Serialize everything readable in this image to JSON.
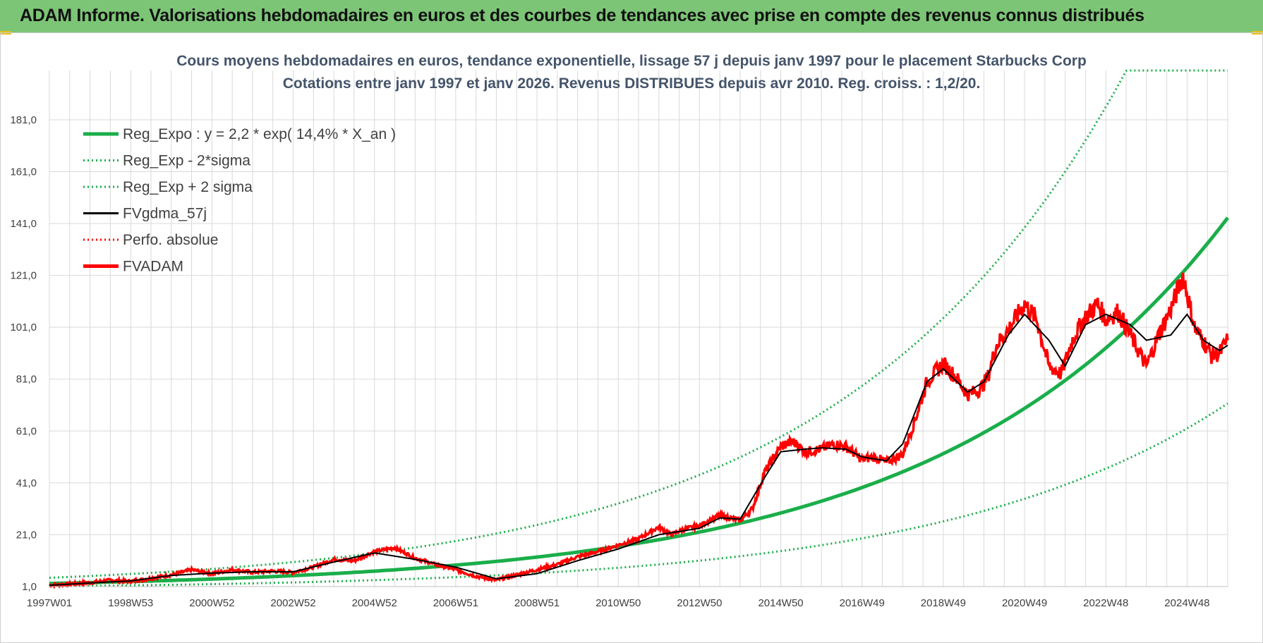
{
  "header": {
    "title": "ADAM Informe. Valorisations hebdomadaires en euros et des courbes de tendances avec prise en compte des revenus connus distribués"
  },
  "chart_data": {
    "type": "line",
    "title": "Cours moyens hebdomadaires en euros, tendance exponentielle, lissage 57 j depuis janv 1997 pour le placement Starbucks Corp",
    "subtitle": "Cotations entre janv 1997 et janv 2026. Revenus DISTRIBUES depuis avr 2010. Reg. croiss. : 1,2/20.",
    "xlabel": "",
    "ylabel": "",
    "xlim": [
      0,
      29
    ],
    "ylim": [
      1,
      200
    ],
    "y_ticks": [
      "1,0",
      "21,0",
      "41,0",
      "61,0",
      "81,0",
      "101,0",
      "121,0",
      "141,0",
      "161,0",
      "181,0"
    ],
    "y_tick_values": [
      1,
      21,
      41,
      61,
      81,
      101,
      121,
      141,
      161,
      181
    ],
    "x_ticks": [
      "1997W01",
      "1998W53",
      "2000W52",
      "2002W52",
      "2004W52",
      "2006W51",
      "2008W51",
      "2010W50",
      "2012W50",
      "2014W50",
      "2016W49",
      "2018W49",
      "2020W49",
      "2022W48",
      "2024W48"
    ],
    "x_tick_values": [
      0,
      2,
      4,
      6,
      8,
      10,
      12,
      14,
      16,
      18,
      20,
      22,
      24,
      26,
      28
    ],
    "grid": true,
    "legend_position": "top-left",
    "colors": {
      "reg_expo": "#1aae4a",
      "sigma": "#1aae4a",
      "fvgdma": "#000000",
      "perfo": "#ff0000",
      "fvadam": "#ff0000"
    },
    "legend": [
      {
        "label": "Reg_Expo : y = 2,2 * exp( 14,4% *  X_an )",
        "style": "thick-solid",
        "color": "#1aae4a"
      },
      {
        "label": "Reg_Exp - 2*sigma",
        "style": "dotted",
        "color": "#1aae4a"
      },
      {
        "label": "Reg_Exp + 2 sigma",
        "style": "dotted",
        "color": "#1aae4a"
      },
      {
        "label": "FVgdma_57j",
        "style": "solid",
        "color": "#000000"
      },
      {
        "label": "Perfo. absolue",
        "style": "dotted",
        "color": "#ff0000"
      },
      {
        "label": "FVADAM",
        "style": "thick-solid",
        "color": "#ff0000"
      }
    ],
    "regression": {
      "a": 2.2,
      "b": 0.144,
      "minus_factor": 0.5,
      "plus_factor": 2.0
    },
    "series": [
      {
        "name": "FVADAM",
        "x": [
          0,
          0.5,
          1,
          1.5,
          2,
          2.5,
          3,
          3.5,
          4,
          4.5,
          5,
          5.5,
          6,
          6.5,
          7,
          7.5,
          8,
          8.5,
          9,
          9.5,
          10,
          10.5,
          11,
          11.5,
          12,
          12.5,
          13,
          13.5,
          14,
          14.5,
          15,
          15.3,
          15.6,
          16,
          16.5,
          17,
          17.3,
          17.6,
          18,
          18.3,
          18.6,
          19,
          19.3,
          19.6,
          20,
          20.3,
          20.6,
          21,
          21.3,
          21.6,
          22,
          22.3,
          22.6,
          22.9,
          23.1,
          23.3,
          23.6,
          24,
          24.3,
          24.6,
          24.9,
          25.2,
          25.5,
          25.8,
          26,
          26.3,
          26.6,
          27,
          27.3,
          27.6,
          27.9,
          28.2,
          28.4,
          28.6,
          28.8,
          29
        ],
        "values": [
          1.5,
          2.0,
          2.5,
          3.5,
          3.0,
          4.2,
          5.5,
          7.5,
          6.0,
          7.5,
          6.5,
          7.0,
          6.5,
          8.5,
          11.5,
          11.0,
          14.5,
          16.0,
          12.0,
          9.5,
          7.5,
          5.0,
          3.5,
          5.5,
          7.5,
          9.5,
          12.5,
          14.5,
          17.0,
          19.5,
          24.0,
          21.0,
          23.0,
          24.5,
          28.5,
          26.5,
          31.0,
          45.0,
          55.0,
          57.0,
          53.0,
          54.0,
          56.0,
          55.0,
          50.0,
          51.0,
          49.0,
          52.0,
          65.0,
          80.0,
          87.0,
          82.0,
          75.0,
          77.0,
          82.0,
          94.0,
          100.0,
          110.0,
          104.0,
          86.0,
          83.0,
          97.0,
          105.0,
          110.0,
          104.0,
          107.0,
          98.0,
          86.0,
          98.0,
          108.0,
          121.0,
          100.0,
          96.0,
          90.0,
          91.0,
          96.0
        ]
      },
      {
        "name": "FVgdma_57j",
        "x": [
          0,
          1,
          2,
          3,
          4,
          5,
          6,
          7,
          8,
          9,
          10,
          11,
          12,
          13,
          14,
          15,
          16,
          16.5,
          17,
          17.6,
          18,
          18.6,
          19,
          19.6,
          20,
          20.6,
          21,
          21.6,
          22,
          22.6,
          23,
          23.6,
          24,
          24.6,
          25,
          25.5,
          26,
          26.6,
          27,
          27.6,
          28,
          28.4,
          28.8,
          29
        ],
        "values": [
          1.5,
          2.4,
          3.2,
          5.3,
          6.2,
          6.7,
          6.7,
          10.5,
          14.0,
          11.5,
          8.5,
          4.0,
          6.0,
          11.0,
          15.5,
          21.0,
          23.5,
          27.5,
          27.0,
          43.0,
          53.0,
          54.0,
          54.5,
          54.0,
          51.0,
          49.5,
          56.0,
          80.0,
          85.0,
          76.0,
          80.0,
          98.0,
          106.0,
          96.0,
          86.0,
          102.0,
          106.0,
          102.0,
          96.0,
          98.0,
          106.0,
          96.0,
          92.0,
          94.0
        ]
      }
    ]
  }
}
